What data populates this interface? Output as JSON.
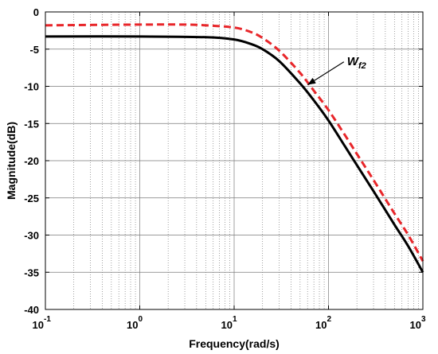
{
  "chart_data": {
    "type": "line",
    "xlabel": "Frequency(rad/s)",
    "ylabel": "Magnitude(dB)",
    "x_scale": "log",
    "xlim": [
      0.1,
      1000
    ],
    "ylim": [
      -40,
      0
    ],
    "x_ticks": [
      {
        "value": 0.1,
        "base": "10",
        "exp": "-1"
      },
      {
        "value": 1,
        "base": "10",
        "exp": "0"
      },
      {
        "value": 10,
        "base": "10",
        "exp": "1"
      },
      {
        "value": 100,
        "base": "10",
        "exp": "2"
      },
      {
        "value": 1000,
        "base": "10",
        "exp": "3"
      }
    ],
    "y_ticks": [
      {
        "value": 0,
        "label": "0"
      },
      {
        "value": -5,
        "label": "-5"
      },
      {
        "value": -10,
        "label": "-10"
      },
      {
        "value": -15,
        "label": "-15"
      },
      {
        "value": -20,
        "label": "-20"
      },
      {
        "value": -25,
        "label": "-25"
      },
      {
        "value": -30,
        "label": "-30"
      },
      {
        "value": -35,
        "label": "-35"
      },
      {
        "value": -40,
        "label": "-40"
      }
    ],
    "grid": true,
    "minor_grid": true,
    "series": [
      {
        "style": "solid",
        "color": "#000000",
        "x": [
          0.1,
          1,
          5,
          10,
          15,
          20,
          30,
          50,
          70,
          100,
          150,
          200,
          300,
          500,
          700,
          1000
        ],
        "y": [
          -3.3,
          -3.3,
          -3.4,
          -3.7,
          -4.3,
          -5.0,
          -6.6,
          -9.6,
          -11.9,
          -14.6,
          -18.1,
          -20.6,
          -24.1,
          -28.6,
          -31.5,
          -35.0
        ]
      },
      {
        "style": "dashed",
        "color": "#e8262a",
        "x": [
          0.1,
          1,
          3,
          5,
          10,
          15,
          20,
          30,
          50,
          70,
          100,
          150,
          200,
          300,
          500,
          700,
          1000
        ],
        "y": [
          -1.8,
          -1.7,
          -1.7,
          -1.8,
          -2.1,
          -2.7,
          -3.5,
          -5.2,
          -8.2,
          -10.6,
          -13.2,
          -16.6,
          -19.1,
          -22.6,
          -27.1,
          -30.0,
          -33.5
        ]
      }
    ],
    "annotations": [
      {
        "text": "W",
        "subscript": "f2",
        "x": 170,
        "y": -6.5,
        "arrow_to": {
          "x": 60,
          "y": -9.8
        }
      }
    ]
  }
}
